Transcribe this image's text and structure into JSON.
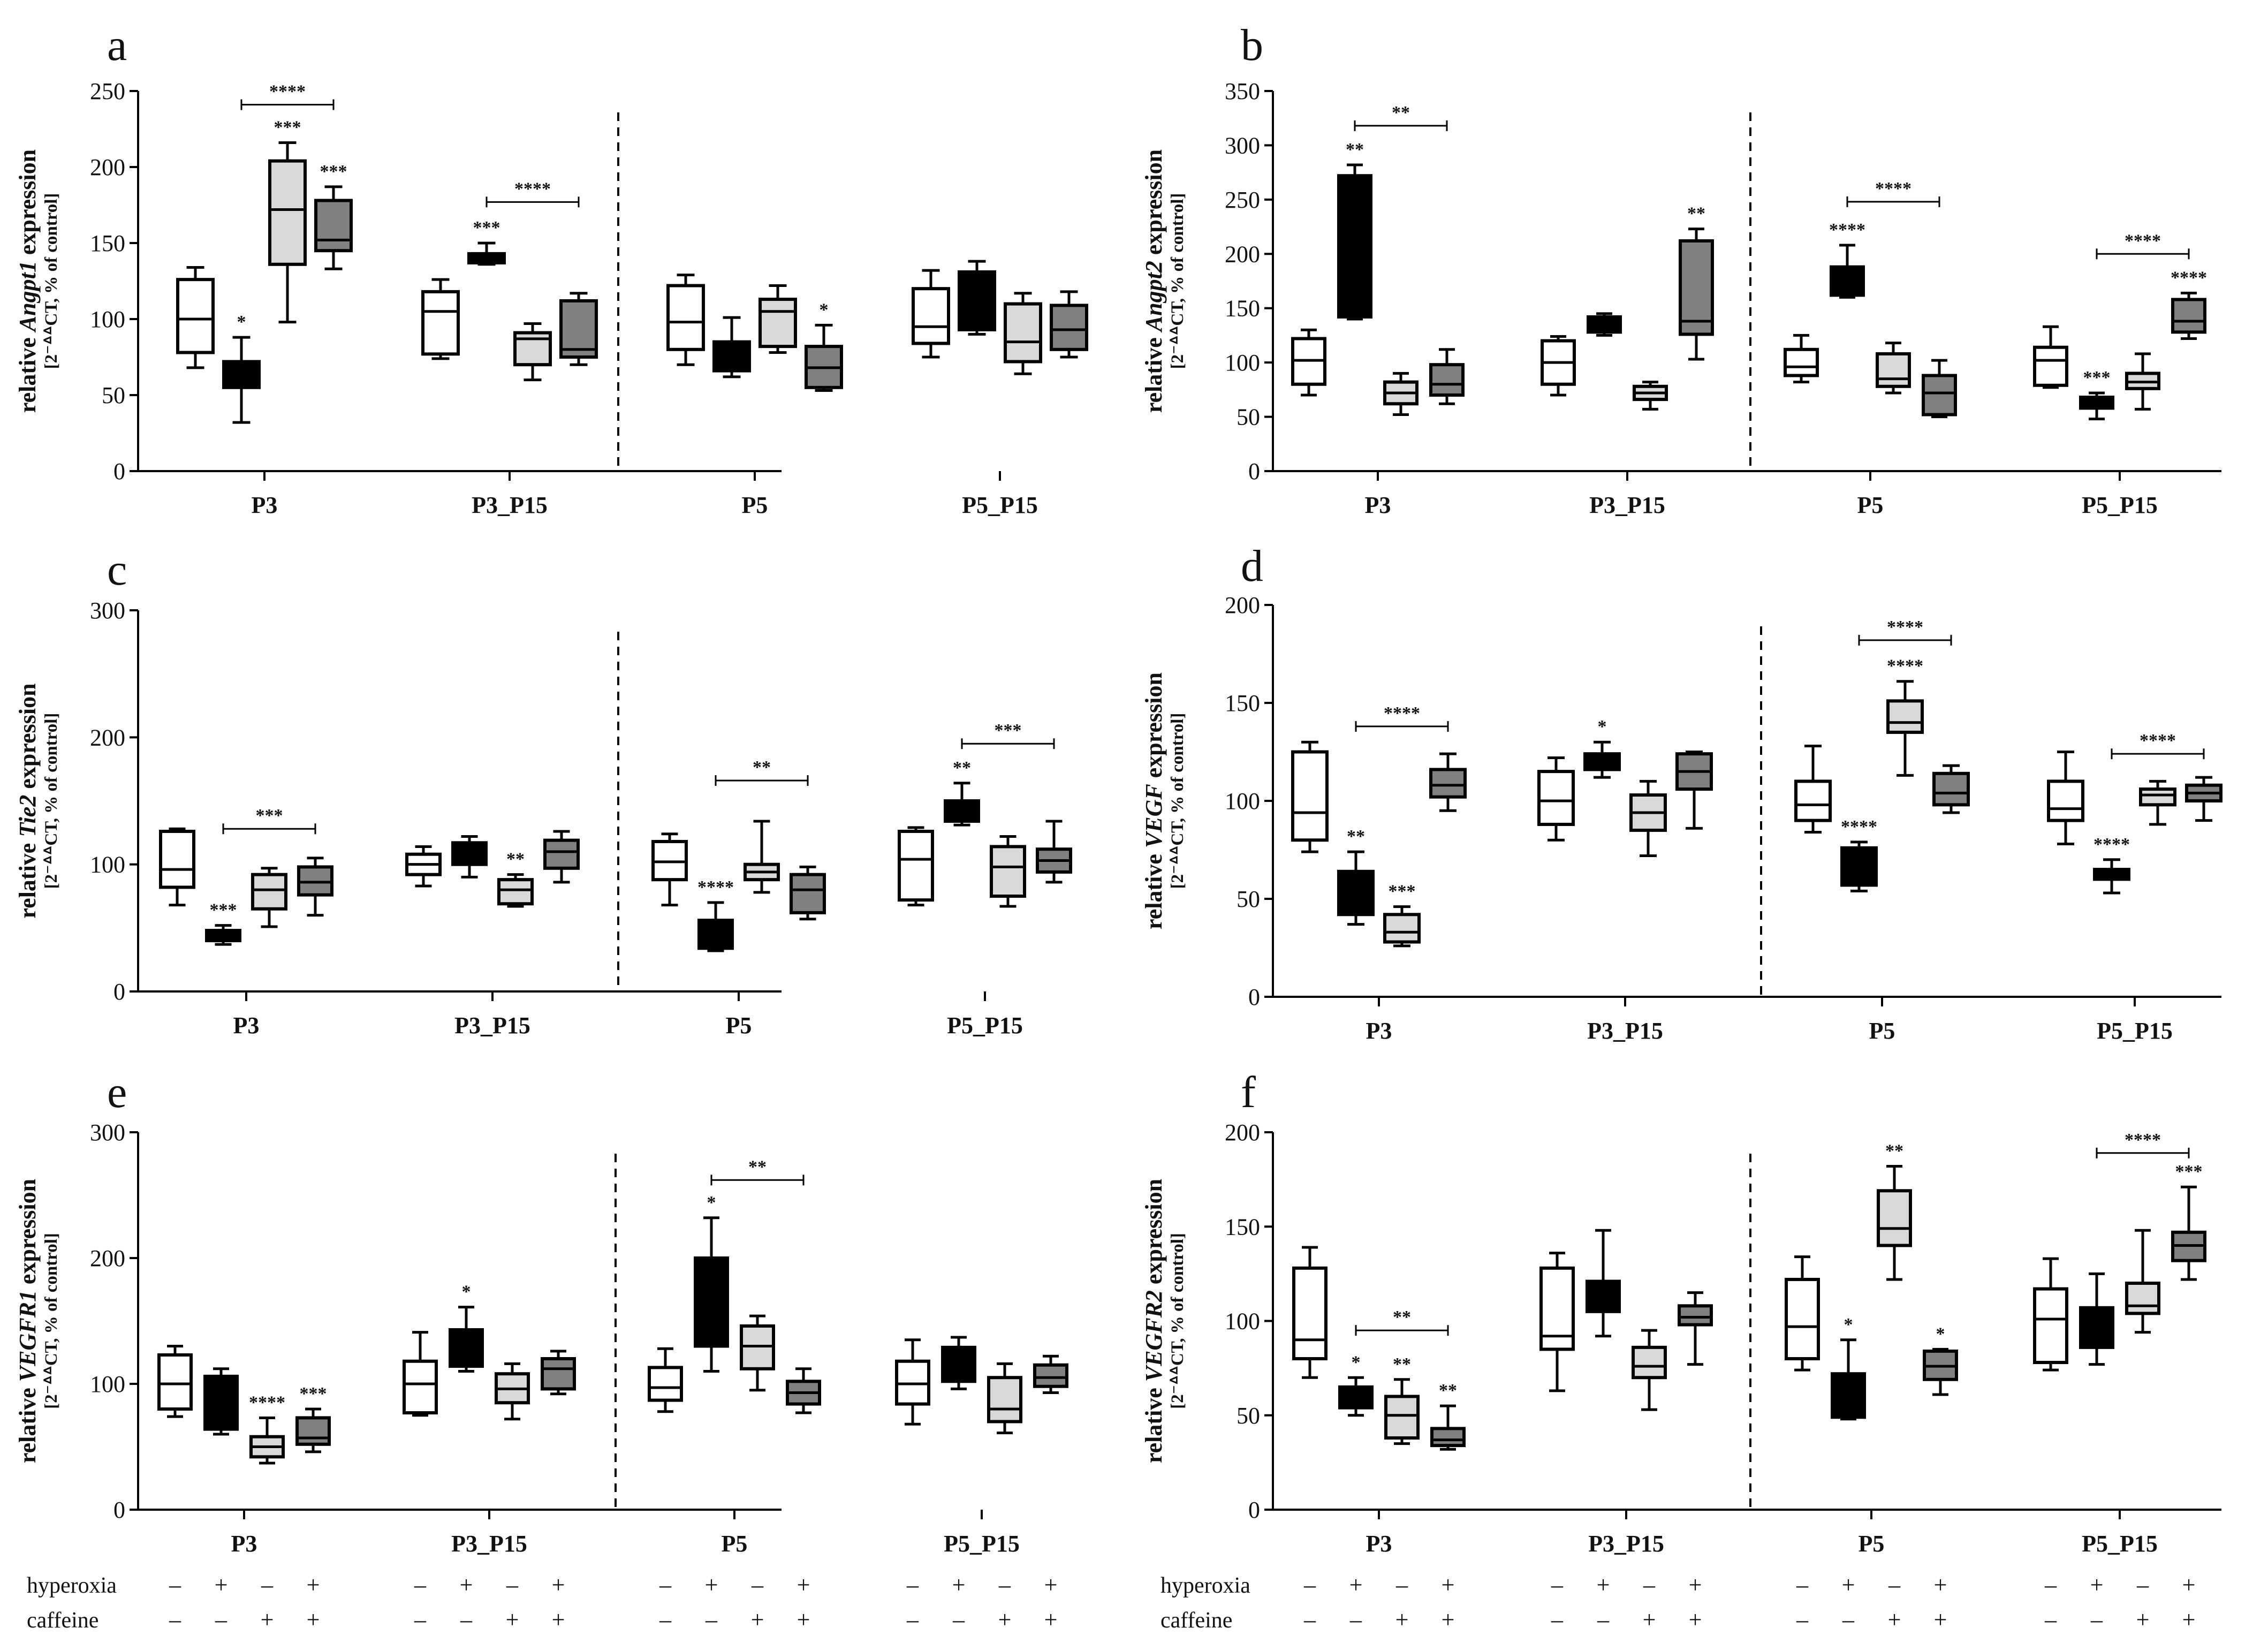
{
  "colors": {
    "ctrl": "#ffffff",
    "hyp": "#000000",
    "caf": "#d9d9d9",
    "hypcaf": "#808080",
    "ink": "#000000"
  },
  "sign_labels": {
    "hyperoxia": "hyperoxia",
    "caffeine": "caffeine",
    "hyperoxia_signs": [
      "–",
      "+",
      "–",
      "+"
    ],
    "caffeine_signs": [
      "–",
      "–",
      "+",
      "+"
    ]
  },
  "chart_data": [
    {
      "type": "box",
      "panel": "a",
      "gene": "Angpt1",
      "ylabel_prefix": "relative",
      "ylabel_suffix": "expression",
      "ylabel_sub": "[2⁻ᐞᐞCT, % of control]",
      "ylim": [
        0,
        250
      ],
      "yticks": [
        "0",
        "50",
        "100",
        "150",
        "200",
        "250"
      ],
      "groups": [
        "P3",
        "P3_P15",
        "P5",
        "P5_P15"
      ],
      "series": [
        "control",
        "hyperoxia",
        "caffeine",
        "hyperoxia + caffeine"
      ],
      "boxes": [
        [
          [
            68,
            78,
            100,
            126,
            134
          ],
          [
            32,
            55,
            62,
            72,
            88
          ],
          [
            98,
            136,
            172,
            204,
            216
          ],
          [
            133,
            145,
            152,
            178,
            187
          ]
        ],
        [
          [
            74,
            77,
            105,
            118,
            126
          ],
          [
            136,
            137,
            140,
            143,
            150
          ],
          [
            60,
            70,
            87,
            91,
            97
          ],
          [
            70,
            75,
            80,
            112,
            117
          ]
        ],
        [
          [
            70,
            80,
            98,
            122,
            129
          ],
          [
            62,
            66,
            70,
            85,
            101
          ],
          [
            78,
            82,
            105,
            113,
            122
          ],
          [
            53,
            55,
            68,
            82,
            96
          ]
        ],
        [
          [
            75,
            84,
            95,
            120,
            132
          ],
          [
            90,
            93,
            112,
            131,
            138
          ],
          [
            64,
            72,
            85,
            110,
            117
          ],
          [
            75,
            80,
            93,
            109,
            118
          ]
        ]
      ],
      "stars": [
        {
          "group": 0,
          "series": 1,
          "label": "*"
        },
        {
          "group": 0,
          "series": 2,
          "label": "***"
        },
        {
          "group": 0,
          "series": 3,
          "label": "***"
        },
        {
          "group": 1,
          "series": 1,
          "label": "***"
        },
        {
          "group": 2,
          "series": 3,
          "label": "*"
        }
      ],
      "brackets": [
        {
          "group": 0,
          "from": 1,
          "to": 3,
          "value": 241,
          "label": "****"
        },
        {
          "group": 1,
          "from": 1,
          "to": 3,
          "value": 177,
          "label": "****"
        }
      ]
    },
    {
      "type": "box",
      "panel": "b",
      "gene": "Angpt2",
      "ylabel_prefix": "relative",
      "ylabel_suffix": "expression",
      "ylabel_sub": "[2⁻ᐞᐞCT, % of control]",
      "ylim": [
        0,
        350
      ],
      "yticks": [
        "0",
        "50",
        "100",
        "150",
        "200",
        "250",
        "300",
        "350"
      ],
      "groups": [
        "P3",
        "P3_P15",
        "P5",
        "P5_P15"
      ],
      "series": [
        "control",
        "hyperoxia",
        "caffeine",
        "hyperoxia + caffeine"
      ],
      "boxes": [
        [
          [
            70,
            80,
            102,
            122,
            130
          ],
          [
            140,
            142,
            225,
            272,
            282
          ],
          [
            52,
            62,
            72,
            82,
            90
          ],
          [
            62,
            70,
            80,
            98,
            112
          ]
        ],
        [
          [
            70,
            80,
            100,
            120,
            124
          ],
          [
            125,
            128,
            135,
            142,
            145
          ],
          [
            57,
            66,
            72,
            78,
            82
          ],
          [
            103,
            126,
            138,
            212,
            223
          ]
        ],
        [
          [
            82,
            88,
            96,
            112,
            125
          ],
          [
            160,
            162,
            172,
            188,
            208
          ],
          [
            72,
            78,
            85,
            108,
            118
          ],
          [
            50,
            52,
            72,
            88,
            102
          ]
        ],
        [
          [
            77,
            79,
            102,
            114,
            133
          ],
          [
            48,
            58,
            64,
            68,
            72
          ],
          [
            57,
            76,
            82,
            90,
            108
          ],
          [
            122,
            128,
            138,
            158,
            164
          ]
        ]
      ],
      "stars": [
        {
          "group": 0,
          "series": 1,
          "label": "**"
        },
        {
          "group": 1,
          "series": 3,
          "label": "**"
        },
        {
          "group": 2,
          "series": 1,
          "label": "****"
        },
        {
          "group": 3,
          "series": 1,
          "label": "***"
        },
        {
          "group": 3,
          "series": 3,
          "label": "****"
        }
      ],
      "brackets": [
        {
          "group": 0,
          "from": 1,
          "to": 3,
          "value": 318,
          "label": "**"
        },
        {
          "group": 2,
          "from": 1,
          "to": 3,
          "value": 248,
          "label": "****"
        },
        {
          "group": 3,
          "from": 1,
          "to": 3,
          "value": 200,
          "label": "****"
        }
      ]
    },
    {
      "type": "box",
      "panel": "c",
      "gene": "Tie2",
      "ylabel_prefix": "relative",
      "ylabel_suffix": "expression",
      "ylabel_sub": "[2⁻ᐞᐞCT, % of control]",
      "ylim": [
        0,
        300
      ],
      "yticks": [
        "0",
        "100",
        "200",
        "300"
      ],
      "groups": [
        "P3",
        "P3_P15",
        "P5",
        "P5_P15"
      ],
      "series": [
        "control",
        "hyperoxia",
        "caffeine",
        "hyperoxia + caffeine"
      ],
      "boxes": [
        [
          [
            68,
            82,
            96,
            126,
            128
          ],
          [
            37,
            40,
            44,
            48,
            52
          ],
          [
            51,
            65,
            80,
            92,
            97
          ],
          [
            60,
            76,
            86,
            98,
            105
          ]
        ],
        [
          [
            83,
            92,
            100,
            108,
            114
          ],
          [
            90,
            100,
            110,
            117,
            122
          ],
          [
            67,
            69,
            80,
            88,
            92
          ],
          [
            86,
            97,
            110,
            119,
            126
          ]
        ],
        [
          [
            68,
            88,
            102,
            118,
            124
          ],
          [
            32,
            34,
            42,
            56,
            70
          ],
          [
            78,
            88,
            94,
            100,
            134
          ],
          [
            57,
            62,
            80,
            92,
            98
          ]
        ],
        [
          [
            68,
            72,
            104,
            126,
            129
          ],
          [
            131,
            134,
            142,
            150,
            164
          ],
          [
            67,
            75,
            98,
            114,
            122
          ],
          [
            86,
            94,
            103,
            112,
            134
          ]
        ]
      ],
      "stars": [
        {
          "group": 0,
          "series": 1,
          "label": "***"
        },
        {
          "group": 1,
          "series": 2,
          "label": "**"
        },
        {
          "group": 2,
          "series": 1,
          "label": "****"
        },
        {
          "group": 3,
          "series": 1,
          "label": "**"
        }
      ],
      "brackets": [
        {
          "group": 0,
          "from": 1,
          "to": 3,
          "value": 128,
          "label": "***"
        },
        {
          "group": 2,
          "from": 1,
          "to": 3,
          "value": 166,
          "label": "**"
        },
        {
          "group": 3,
          "from": 1,
          "to": 3,
          "value": 195,
          "label": "***"
        }
      ]
    },
    {
      "type": "box",
      "panel": "d",
      "gene": "VEGF",
      "ylabel_prefix": "relative",
      "ylabel_suffix": "expression",
      "ylabel_sub": "[2⁻ᐞᐞCT, % of control]",
      "ylim": [
        0,
        200
      ],
      "yticks": [
        "0",
        "50",
        "100",
        "150",
        "200"
      ],
      "groups": [
        "P3",
        "P3_P15",
        "P5",
        "P5_P15"
      ],
      "series": [
        "control",
        "hyperoxia",
        "caffeine",
        "hyperoxia + caffeine"
      ],
      "boxes": [
        [
          [
            74,
            80,
            94,
            125,
            130
          ],
          [
            37,
            42,
            52,
            64,
            74
          ],
          [
            26,
            28,
            33,
            42,
            46
          ],
          [
            95,
            102,
            108,
            116,
            124
          ]
        ],
        [
          [
            80,
            88,
            100,
            115,
            122
          ],
          [
            112,
            116,
            120,
            124,
            130
          ],
          [
            72,
            85,
            94,
            103,
            110
          ],
          [
            86,
            106,
            115,
            124,
            125
          ]
        ],
        [
          [
            84,
            90,
            98,
            110,
            128
          ],
          [
            54,
            57,
            62,
            76,
            79
          ],
          [
            113,
            135,
            140,
            151,
            161
          ],
          [
            94,
            98,
            104,
            114,
            118
          ]
        ],
        [
          [
            78,
            90,
            96,
            110,
            125
          ],
          [
            53,
            60,
            64,
            65,
            70
          ],
          [
            88,
            98,
            103,
            106,
            110
          ],
          [
            90,
            100,
            104,
            108,
            112
          ]
        ]
      ],
      "stars": [
        {
          "group": 0,
          "series": 1,
          "label": "**"
        },
        {
          "group": 0,
          "series": 2,
          "label": "***"
        },
        {
          "group": 1,
          "series": 1,
          "label": "*"
        },
        {
          "group": 2,
          "series": 1,
          "label": "****"
        },
        {
          "group": 2,
          "series": 2,
          "label": "****"
        },
        {
          "group": 3,
          "series": 1,
          "label": "****"
        }
      ],
      "brackets": [
        {
          "group": 0,
          "from": 1,
          "to": 3,
          "value": 138,
          "label": "****"
        },
        {
          "group": 2,
          "from": 1,
          "to": 3,
          "value": 182,
          "label": "****"
        },
        {
          "group": 3,
          "from": 1,
          "to": 3,
          "value": 124,
          "label": "****"
        }
      ]
    },
    {
      "type": "box",
      "panel": "e",
      "gene": "VEGFR1",
      "ylabel_prefix": "relative",
      "ylabel_suffix": "expression",
      "ylabel_sub": "[2⁻ᐞᐞCT, % of control]",
      "ylim": [
        0,
        300
      ],
      "yticks": [
        "0",
        "100",
        "200",
        "300"
      ],
      "groups": [
        "P3",
        "P3_P15",
        "P5",
        "P5_P15"
      ],
      "series": [
        "control",
        "hyperoxia",
        "caffeine",
        "hyperoxia + caffeine"
      ],
      "boxes": [
        [
          [
            74,
            80,
            100,
            123,
            130
          ],
          [
            60,
            64,
            90,
            106,
            112
          ],
          [
            37,
            42,
            50,
            58,
            73
          ],
          [
            46,
            52,
            57,
            73,
            80
          ]
        ],
        [
          [
            75,
            77,
            100,
            118,
            141
          ],
          [
            110,
            114,
            120,
            143,
            161
          ],
          [
            72,
            85,
            96,
            108,
            116
          ],
          [
            92,
            96,
            112,
            120,
            126
          ]
        ],
        [
          [
            78,
            87,
            97,
            113,
            128
          ],
          [
            110,
            130,
            143,
            200,
            232
          ],
          [
            95,
            112,
            130,
            146,
            154
          ],
          [
            77,
            84,
            93,
            102,
            112
          ]
        ],
        [
          [
            68,
            84,
            100,
            118,
            135
          ],
          [
            96,
            102,
            117,
            129,
            137
          ],
          [
            61,
            70,
            80,
            105,
            116
          ],
          [
            93,
            98,
            105,
            115,
            122
          ]
        ]
      ],
      "stars": [
        {
          "group": 0,
          "series": 2,
          "label": "****"
        },
        {
          "group": 0,
          "series": 3,
          "label": "***"
        },
        {
          "group": 1,
          "series": 1,
          "label": "*"
        },
        {
          "group": 2,
          "series": 1,
          "label": "*"
        }
      ],
      "brackets": [
        {
          "group": 2,
          "from": 1,
          "to": 3,
          "value": 262,
          "label": "**"
        }
      ]
    },
    {
      "type": "box",
      "panel": "f",
      "gene": "VEGFR2",
      "ylabel_prefix": "relative",
      "ylabel_suffix": "expression",
      "ylabel_sub": "[2⁻ᐞᐞCT, % of control]",
      "ylim": [
        0,
        200
      ],
      "yticks": [
        "0",
        "50",
        "100",
        "150",
        "200"
      ],
      "groups": [
        "P3",
        "P3_P15",
        "P5",
        "P5_P15"
      ],
      "series": [
        "control",
        "hyperoxia",
        "caffeine",
        "hyperoxia + caffeine"
      ],
      "boxes": [
        [
          [
            70,
            80,
            90,
            128,
            139
          ],
          [
            50,
            54,
            60,
            65,
            70
          ],
          [
            35,
            38,
            50,
            60,
            69
          ],
          [
            32,
            34,
            37,
            43,
            55
          ]
        ],
        [
          [
            63,
            85,
            92,
            128,
            136
          ],
          [
            92,
            105,
            111,
            121,
            148
          ],
          [
            53,
            70,
            76,
            86,
            95
          ],
          [
            77,
            98,
            102,
            108,
            115
          ]
        ],
        [
          [
            74,
            80,
            97,
            122,
            134
          ],
          [
            48,
            49,
            55,
            72,
            90
          ],
          [
            122,
            140,
            149,
            169,
            182
          ],
          [
            61,
            69,
            76,
            84,
            85
          ]
        ],
        [
          [
            74,
            78,
            101,
            117,
            133
          ],
          [
            77,
            86,
            97,
            107,
            125
          ],
          [
            94,
            104,
            108,
            120,
            148
          ],
          [
            122,
            132,
            140,
            147,
            171
          ]
        ]
      ],
      "stars": [
        {
          "group": 0,
          "series": 1,
          "label": "*"
        },
        {
          "group": 0,
          "series": 2,
          "label": "**"
        },
        {
          "group": 0,
          "series": 3,
          "label": "**"
        },
        {
          "group": 2,
          "series": 1,
          "label": "*"
        },
        {
          "group": 2,
          "series": 2,
          "label": "**"
        },
        {
          "group": 2,
          "series": 3,
          "label": "*"
        },
        {
          "group": 3,
          "series": 3,
          "label": "***"
        }
      ],
      "brackets": [
        {
          "group": 0,
          "from": 1,
          "to": 3,
          "value": 95,
          "label": "**"
        },
        {
          "group": 3,
          "from": 1,
          "to": 3,
          "value": 189,
          "label": "****"
        }
      ]
    }
  ]
}
